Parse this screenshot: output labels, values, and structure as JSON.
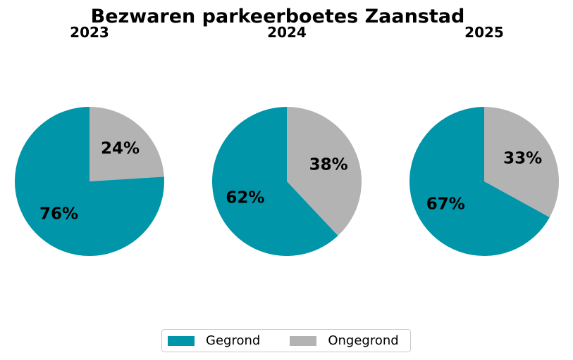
{
  "chart_data": {
    "type": "pie",
    "title": "Bezwaren parkeerboetes Zaanstad",
    "colors": {
      "Gegrond": "#0095a8",
      "Ongegrond": "#b3b3b3"
    },
    "legend": [
      "Gegrond",
      "Ongegrond"
    ],
    "legend_placement": "bottom-center",
    "pies": [
      {
        "subtitle": "2023",
        "slices": [
          {
            "label": "Gegrond",
            "value": 76,
            "text": "76%"
          },
          {
            "label": "Ongegrond",
            "value": 24,
            "text": "24%"
          }
        ]
      },
      {
        "subtitle": "2024",
        "slices": [
          {
            "label": "Gegrond",
            "value": 62,
            "text": "62%"
          },
          {
            "label": "Ongegrond",
            "value": 38,
            "text": "38%"
          }
        ]
      },
      {
        "subtitle": "2025",
        "slices": [
          {
            "label": "Gegrond",
            "value": 67,
            "text": "67%"
          },
          {
            "label": "Ongegrond",
            "value": 33,
            "text": "33%"
          }
        ]
      }
    ]
  }
}
